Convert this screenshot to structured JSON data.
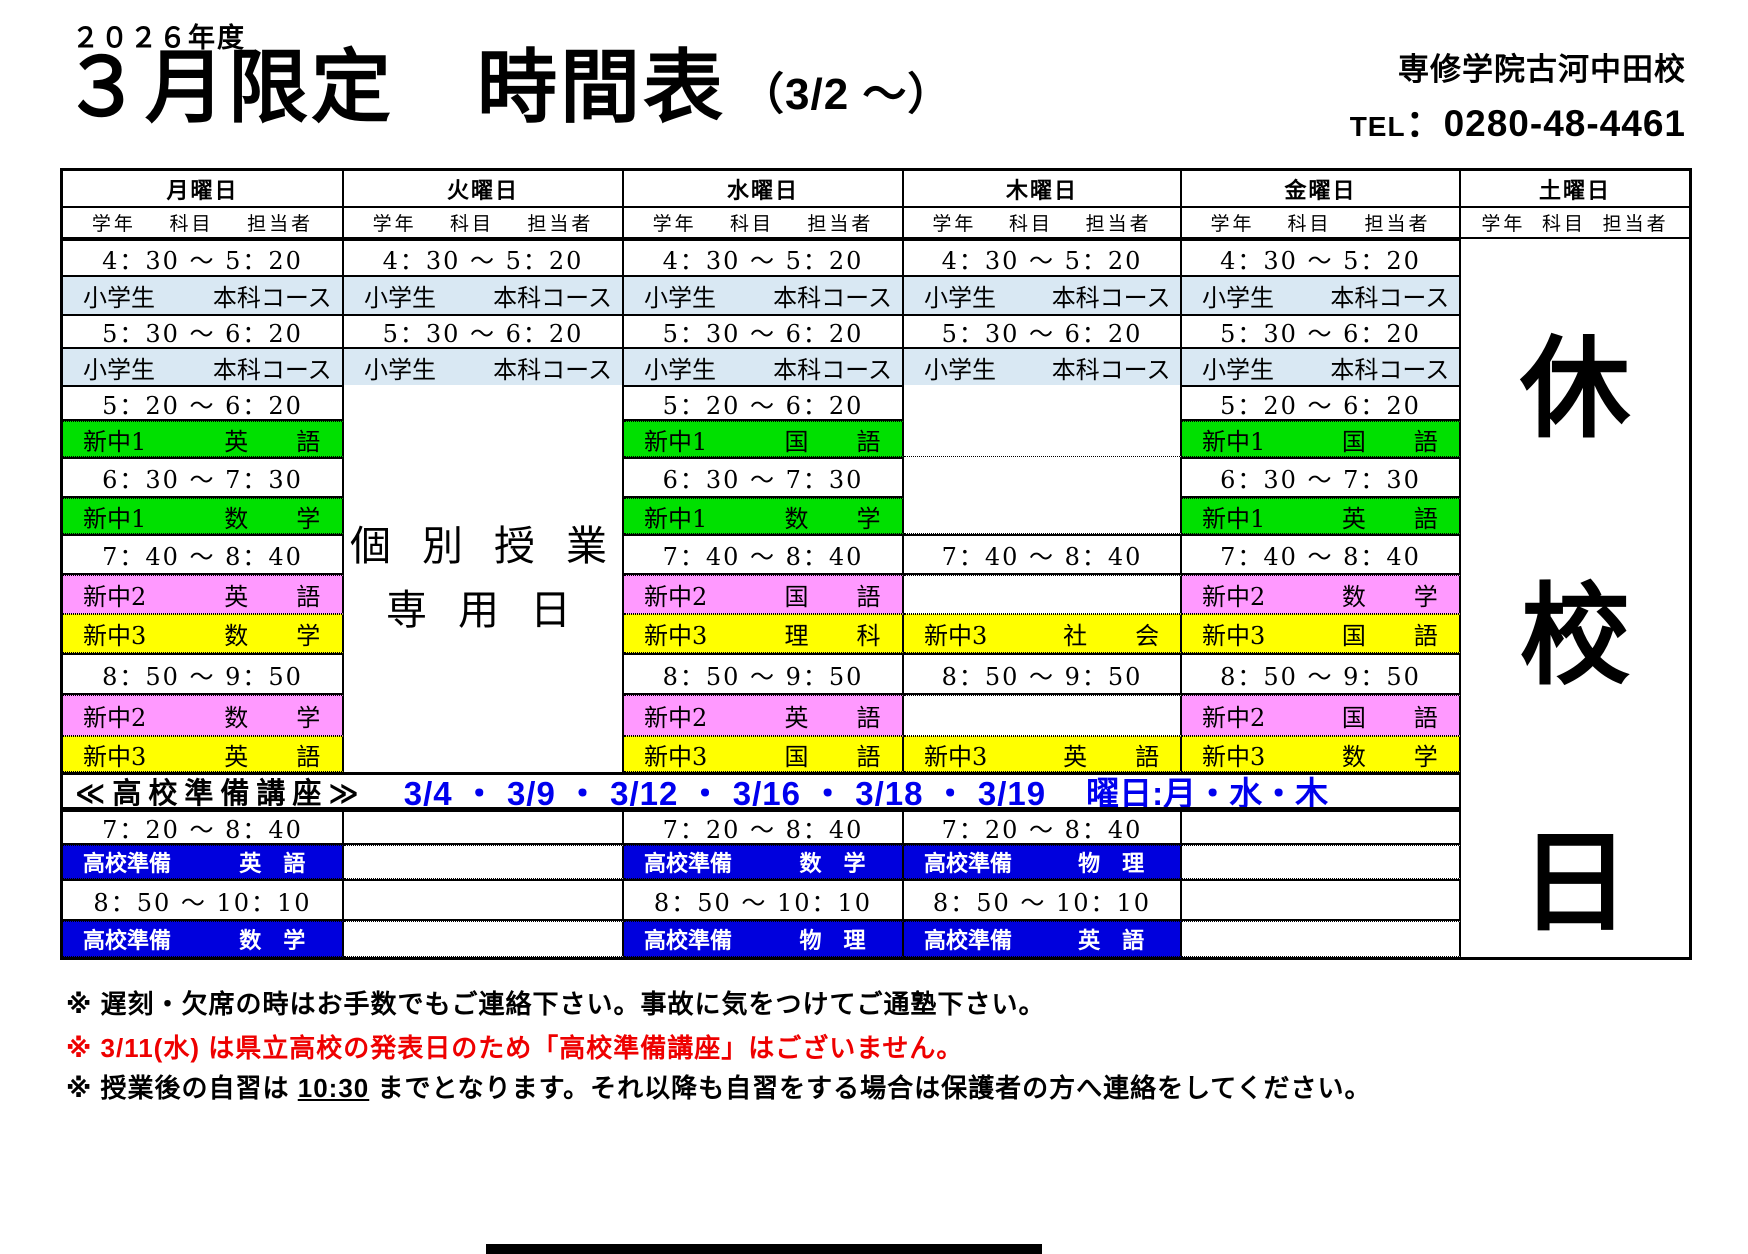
{
  "header": {
    "year": "２０２６年度",
    "title": "３月限定　時間表",
    "title_suffix": "（3/2 ～）",
    "school_name": "専修学院古河中田校",
    "tel_label": "TEL",
    "tel_value": "：0280-48-4461"
  },
  "table": {
    "days": [
      "月曜日",
      "火曜日",
      "水曜日",
      "木曜日",
      "金曜日",
      "土曜日"
    ],
    "subheaders": [
      "学年",
      "科目",
      "担当者"
    ],
    "tuesday_note_line1": "個 別 授 業",
    "tuesday_note_line2": "専 用 日",
    "saturday_closed": [
      "休",
      "校",
      "日"
    ],
    "rows": [
      {
        "kind": "time",
        "mon": "4：30 ～ 5：20",
        "tue": "4：30 ～ 5：20",
        "wed": "4：30 ～ 5：20",
        "thu": "4：30 ～ 5：20",
        "fri": "4：30 ～ 5：20"
      },
      {
        "kind": "class",
        "style": "elementary",
        "mon": [
          "小学生",
          "本科コース"
        ],
        "tue": [
          "小学生",
          "本科コース"
        ],
        "wed": [
          "小学生",
          "本科コース"
        ],
        "thu": [
          "小学生",
          "本科コース"
        ],
        "fri": [
          "小学生",
          "本科コース"
        ]
      },
      {
        "kind": "time",
        "mon": "5：30 ～ 6：20",
        "tue": "5：30 ～ 6：20",
        "wed": "5：30 ～ 6：20",
        "thu": "5：30 ～ 6：20",
        "fri": "5：30 ～ 6：20"
      },
      {
        "kind": "class",
        "style": "elementary",
        "mon": [
          "小学生",
          "本科コース"
        ],
        "tue": [
          "小学生",
          "本科コース"
        ],
        "wed": [
          "小学生",
          "本科コース"
        ],
        "thu": [
          "小学生",
          "本科コース"
        ],
        "fri": [
          "小学生",
          "本科コース"
        ]
      },
      {
        "kind": "time",
        "mon": "5：20 ～ 6：20",
        "wed": "5：20 ～ 6：20",
        "thu": null,
        "fri": "5：20 ～ 6：20"
      },
      {
        "kind": "class",
        "style": "grade7",
        "mon": [
          "新中1",
          "英　　語"
        ],
        "wed": [
          "新中1",
          "国　　語"
        ],
        "thu": "-",
        "fri": [
          "新中1",
          "国　　語"
        ]
      },
      {
        "kind": "time",
        "mon": "6：30 ～ 7：30",
        "wed": "6：30 ～ 7：30",
        "thu": null,
        "fri": "6：30 ～ 7：30"
      },
      {
        "kind": "class",
        "style": "grade7",
        "mon": [
          "新中1",
          "数　　学"
        ],
        "wed": [
          "新中1",
          "数　　学"
        ],
        "thu": "-",
        "fri": [
          "新中1",
          "英　　語"
        ]
      },
      {
        "kind": "time",
        "mon": "7：40 ～ 8：40",
        "wed": "7：40 ～ 8：40",
        "thu": "7：40 ～ 8：40",
        "fri": "7：40 ～ 8：40"
      },
      {
        "kind": "class",
        "style": "grade8",
        "mon": [
          "新中2",
          "英　　語"
        ],
        "wed": [
          "新中2",
          "国　　語"
        ],
        "thu": "",
        "fri": [
          "新中2",
          "数　　学"
        ]
      },
      {
        "kind": "class",
        "style": "grade9",
        "mon": [
          "新中3",
          "数　　学"
        ],
        "wed": [
          "新中3",
          "理　　科"
        ],
        "thu": [
          "新中3",
          "社　　会"
        ],
        "fri": [
          "新中3",
          "国　　語"
        ]
      },
      {
        "kind": "time",
        "mon": "8：50 ～ 9：50",
        "wed": "8：50 ～ 9：50",
        "thu": "8：50 ～ 9：50",
        "fri": "8：50 ～ 9：50"
      },
      {
        "kind": "class",
        "style": "grade8",
        "mon": [
          "新中2",
          "数　　学"
        ],
        "wed": [
          "新中2",
          "英　　語"
        ],
        "thu": "",
        "fri": [
          "新中2",
          "国　　語"
        ]
      },
      {
        "kind": "class",
        "style": "grade9",
        "mon": [
          "新中3",
          "英　　語"
        ],
        "wed": [
          "新中3",
          "国　　語"
        ],
        "thu": [
          "新中3",
          "英　　語"
        ],
        "fri": [
          "新中3",
          "数　　学"
        ]
      },
      {
        "kind": "banner"
      },
      {
        "kind": "time",
        "mon": "7：20 ～ 8：40",
        "tue": "",
        "wed": "7：20 ～ 8：40",
        "thu": "7：20 ～ 8：40",
        "fri": ""
      },
      {
        "kind": "class",
        "style": "prep",
        "mon": [
          "高校準備",
          "英　語"
        ],
        "tue": "",
        "wed": [
          "高校準備",
          "数　学"
        ],
        "thu": [
          "高校準備",
          "物　理"
        ],
        "fri": ""
      },
      {
        "kind": "time",
        "mon": "8：50 ～ 10：10",
        "tue": "",
        "wed": "8：50 ～ 10：10",
        "thu": "8：50 ～ 10：10",
        "fri": ""
      },
      {
        "kind": "class",
        "style": "prep",
        "mon": [
          "高校準備",
          "数　学"
        ],
        "tue": "",
        "wed": [
          "高校準備",
          "物　理"
        ],
        "thu": [
          "高校準備",
          "英　語"
        ],
        "fri": ""
      }
    ]
  },
  "banner": {
    "label": "≪高校準備講座≫",
    "dates": "3/4 ・ 3/9 ・ 3/12 ・ 3/16 ・ 3/18 ・ 3/19",
    "weekdays": "曜日:月・水・木"
  },
  "notes": {
    "note1": "※ 遅刻・欠席の時はお手数でもご連絡下さい。事故に気をつけてご通塾下さい。",
    "note2": "※ 3/11(水) は県立高校の発表日のため「高校準備講座」はございません。",
    "note3_prefix": "※ 授業後の自習は ",
    "note3_time": "10:30",
    "note3_suffix": " までとなります。それ以降も自習をする場合は保護者の方へ連絡をしてください。"
  },
  "colors": {
    "elementary_row": "#d9e8f3",
    "grade7_row": "#00e000",
    "grade8_row": "#ff99ff",
    "grade9_row": "#ffff00",
    "prep_row": "#0000dd",
    "banner_blue": "#0000ee",
    "alert_red": "#ee0000"
  }
}
